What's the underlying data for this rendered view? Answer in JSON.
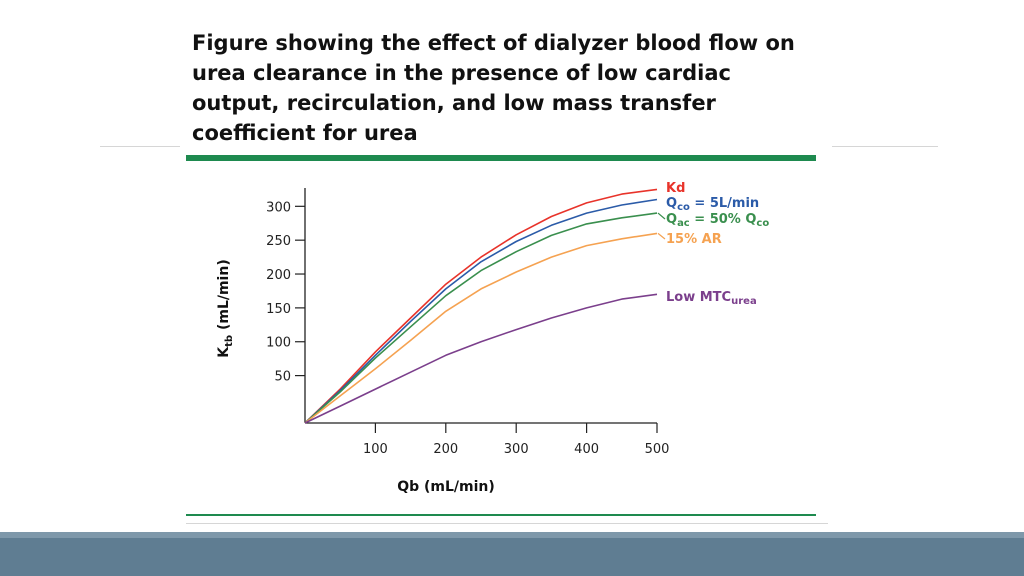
{
  "slide": {
    "title_lines": [
      "Figure showing the effect of dialyzer blood flow on",
      "urea clearance in the presence of low cardiac",
      "output, recirculation, and low mass transfer",
      "coefficient for urea"
    ]
  },
  "colors": {
    "accent_rule": "#1e8a4f",
    "footer_band": "#5f7d92"
  },
  "chart_data": {
    "type": "line",
    "xlabel": "Qb (mL/min)",
    "ylabel": "K",
    "ylabel_sub": "tb",
    "ylabel_unit": " (mL/min)",
    "xlim": [
      0,
      500
    ],
    "ylim": [
      -20,
      330
    ],
    "xticks": [
      100,
      200,
      300,
      400,
      500
    ],
    "yticks": [
      50,
      100,
      150,
      200,
      250,
      300
    ],
    "grid": false,
    "series": [
      {
        "name": "Kd",
        "color": "#e8332a",
        "x": [
          0,
          50,
          100,
          150,
          200,
          250,
          300,
          350,
          400,
          450,
          500
        ],
        "y": [
          -20,
          30,
          85,
          135,
          185,
          225,
          258,
          285,
          305,
          318,
          325
        ]
      },
      {
        "name": "Qco = 5L/min",
        "label_main": "Q",
        "label_sub": "co",
        "label_rest": " = 5L/min",
        "color": "#2b5ba8",
        "x": [
          0,
          50,
          100,
          150,
          200,
          250,
          300,
          350,
          400,
          450,
          500
        ],
        "y": [
          -20,
          28,
          80,
          130,
          178,
          218,
          248,
          272,
          290,
          302,
          310
        ]
      },
      {
        "name": "Qac = 50% Qco",
        "label_main": "Q",
        "label_sub": "ac",
        "label_rest": " = 50% Q",
        "label_sub2": "co",
        "color": "#3a8f4e",
        "x": [
          0,
          50,
          100,
          150,
          200,
          250,
          300,
          350,
          400,
          450,
          500
        ],
        "y": [
          -20,
          26,
          76,
          122,
          168,
          205,
          233,
          257,
          274,
          283,
          290
        ]
      },
      {
        "name": "15% AR",
        "color": "#f5a251",
        "x": [
          0,
          50,
          100,
          150,
          200,
          250,
          300,
          350,
          400,
          450,
          500
        ],
        "y": [
          -20,
          20,
          60,
          102,
          145,
          178,
          203,
          225,
          242,
          252,
          260
        ]
      },
      {
        "name": "Low MTCurea",
        "label_main": "Low MTC",
        "label_sub": "urea",
        "color": "#7b3f8c",
        "x": [
          0,
          50,
          100,
          150,
          200,
          250,
          300,
          350,
          400,
          450,
          500
        ],
        "y": [
          -20,
          5,
          30,
          55,
          80,
          100,
          118,
          135,
          150,
          163,
          170
        ]
      }
    ]
  }
}
